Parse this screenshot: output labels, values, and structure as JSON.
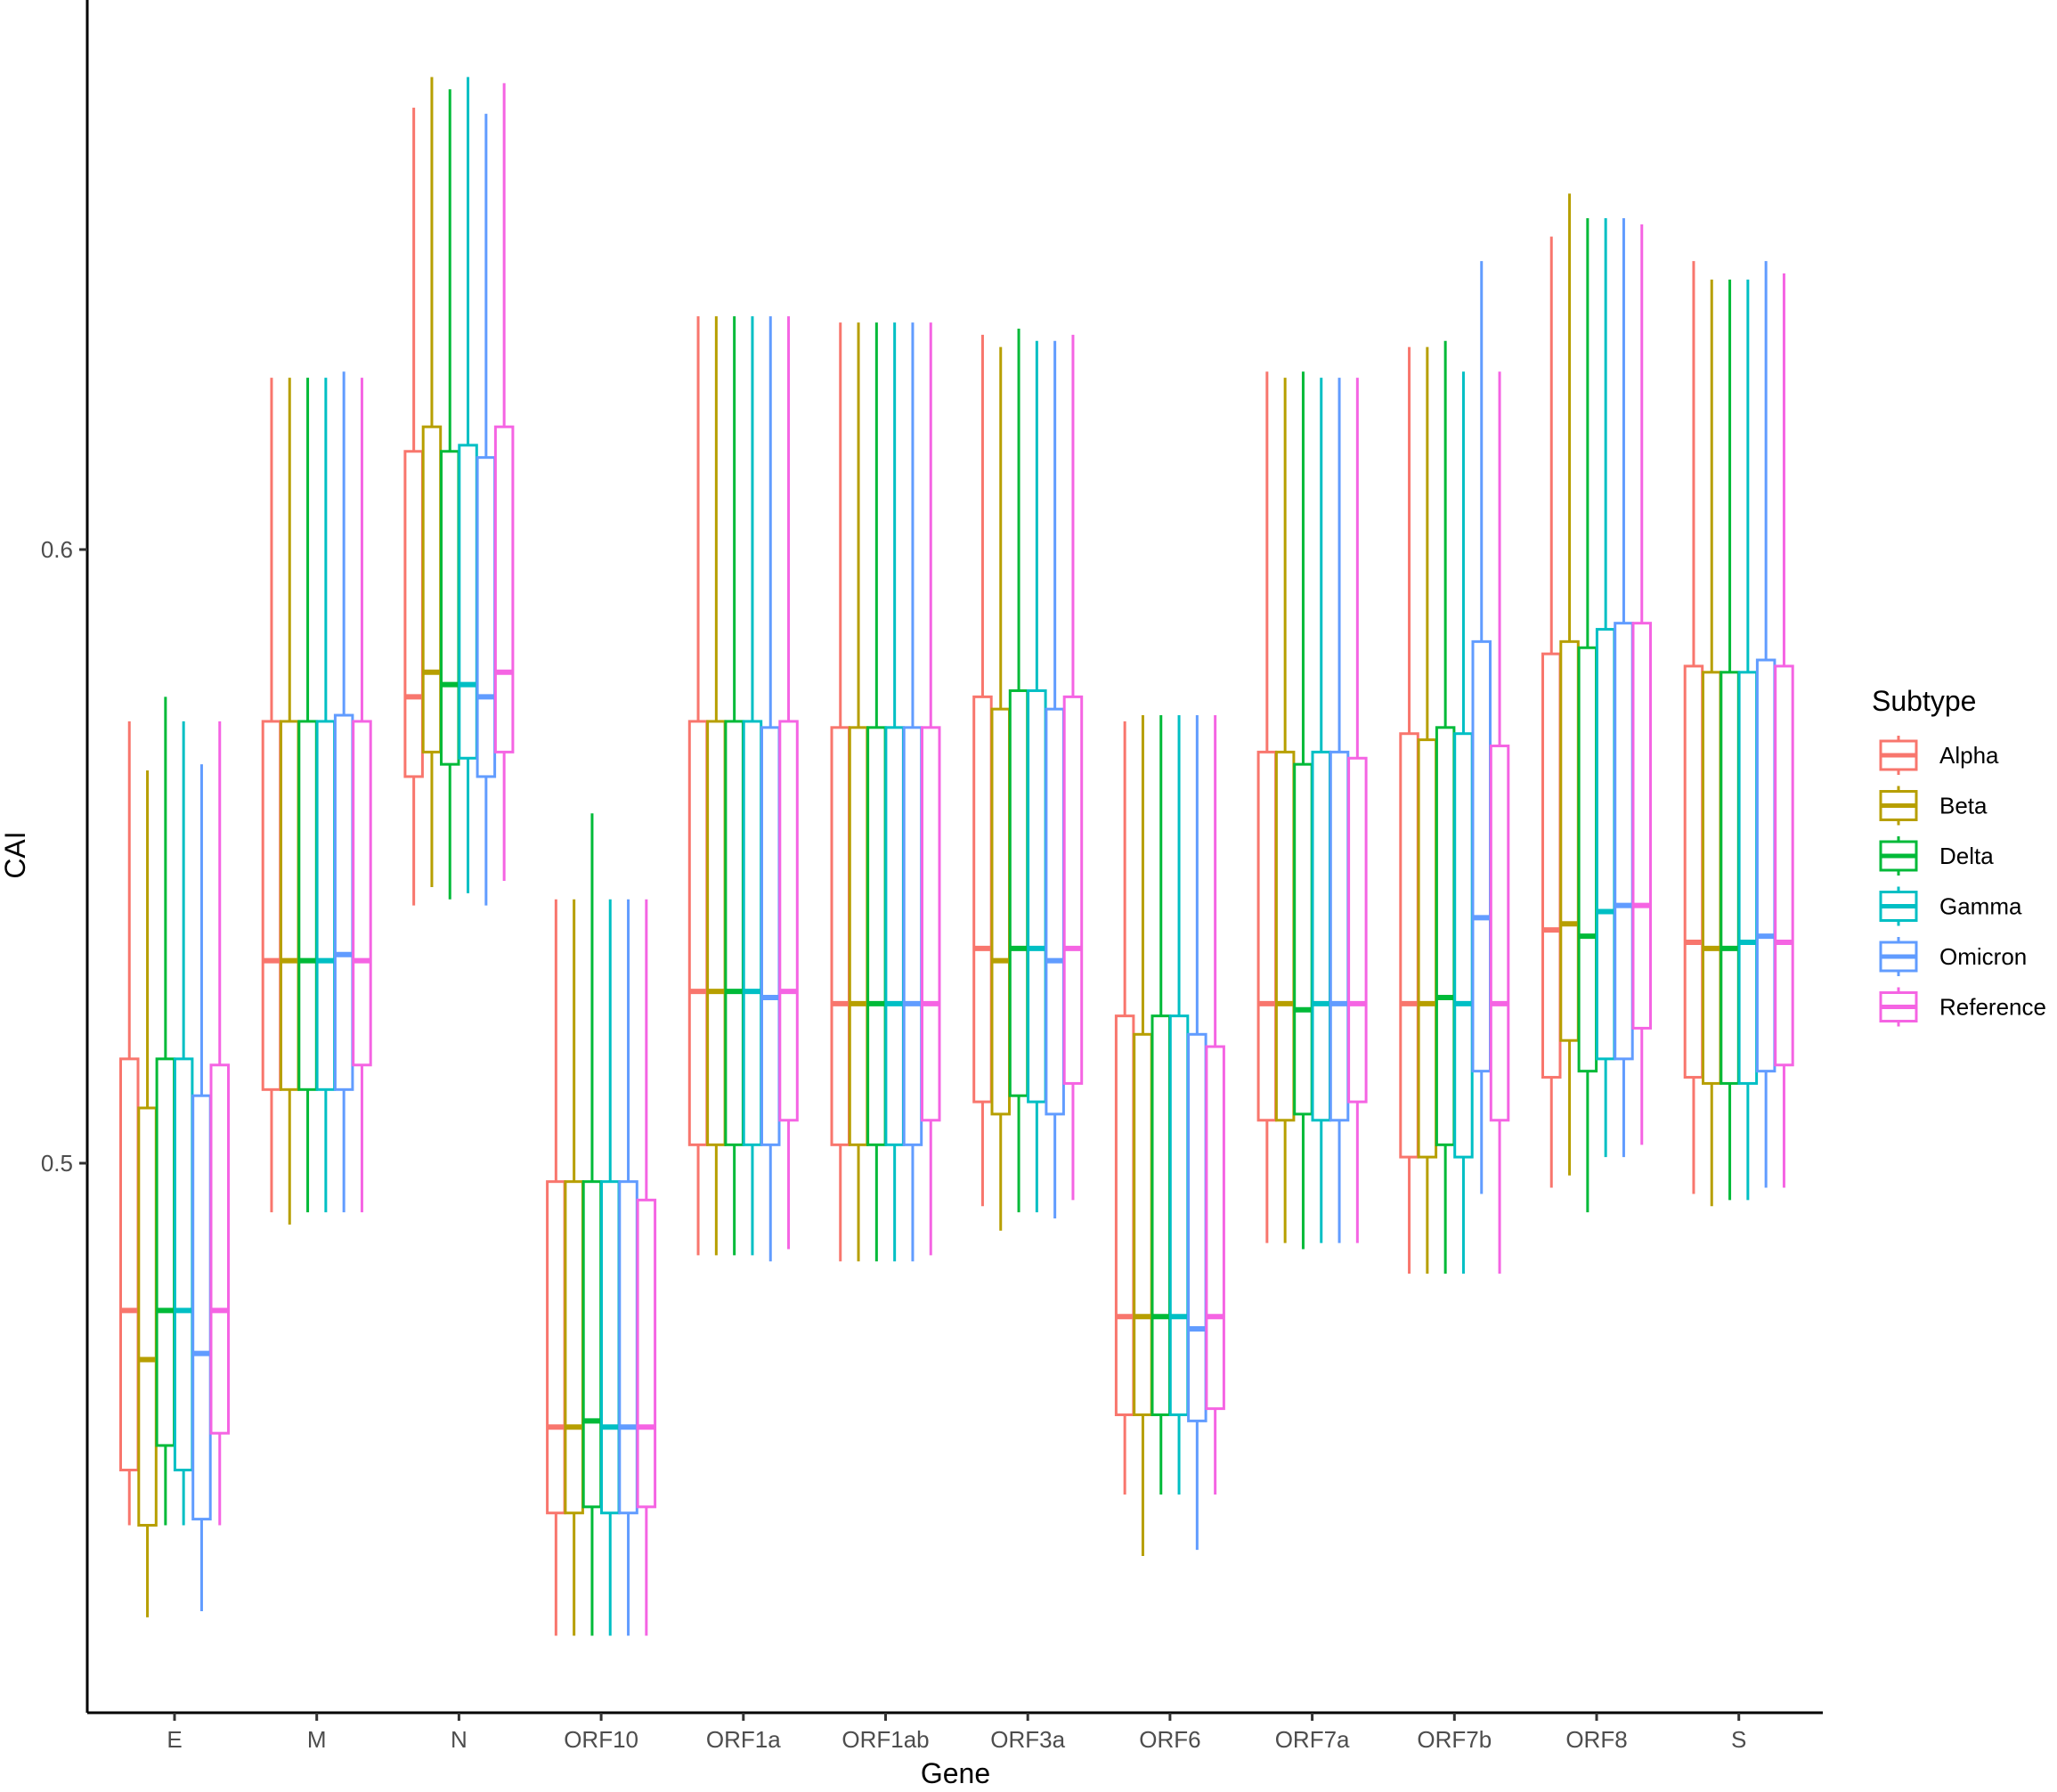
{
  "chart_data": {
    "type": "boxplot",
    "xlabel": "Gene",
    "ylabel": "CAI",
    "ylim": [
      0.41,
      0.69
    ],
    "yticks": [
      0.5,
      0.6
    ],
    "ytick_labels": [
      "0.5",
      "0.6"
    ],
    "categories": [
      "E",
      "M",
      "N",
      "ORF10",
      "ORF1a",
      "ORF1ab",
      "ORF3a",
      "ORF6",
      "ORF7a",
      "ORF7b",
      "ORF8",
      "S"
    ],
    "legend": {
      "title": "Subtype",
      "position": "right"
    },
    "grid": false,
    "series": [
      {
        "name": "Alpha",
        "color": "#F8766D",
        "boxes": [
          {
            "min": 0.441,
            "q1": 0.45,
            "median": 0.476,
            "q3": 0.517,
            "max": 0.572
          },
          {
            "min": 0.492,
            "q1": 0.512,
            "median": 0.533,
            "q3": 0.572,
            "max": 0.628
          },
          {
            "min": 0.542,
            "q1": 0.563,
            "median": 0.576,
            "q3": 0.616,
            "max": 0.672
          },
          {
            "min": 0.423,
            "q1": 0.443,
            "median": 0.457,
            "q3": 0.497,
            "max": 0.543
          },
          {
            "min": 0.485,
            "q1": 0.503,
            "median": 0.528,
            "q3": 0.572,
            "max": 0.638
          },
          {
            "min": 0.484,
            "q1": 0.503,
            "median": 0.526,
            "q3": 0.571,
            "max": 0.637
          },
          {
            "min": 0.493,
            "q1": 0.51,
            "median": 0.535,
            "q3": 0.576,
            "max": 0.635
          },
          {
            "min": 0.446,
            "q1": 0.459,
            "median": 0.475,
            "q3": 0.524,
            "max": 0.572
          },
          {
            "min": 0.487,
            "q1": 0.507,
            "median": 0.526,
            "q3": 0.567,
            "max": 0.629
          },
          {
            "min": 0.482,
            "q1": 0.501,
            "median": 0.526,
            "q3": 0.57,
            "max": 0.633
          },
          {
            "min": 0.496,
            "q1": 0.514,
            "median": 0.538,
            "q3": 0.583,
            "max": 0.651
          },
          {
            "min": 0.495,
            "q1": 0.514,
            "median": 0.536,
            "q3": 0.581,
            "max": 0.647
          }
        ]
      },
      {
        "name": "Beta",
        "color": "#B79F00",
        "boxes": [
          {
            "min": 0.426,
            "q1": 0.441,
            "median": 0.468,
            "q3": 0.509,
            "max": 0.564
          },
          {
            "min": 0.49,
            "q1": 0.512,
            "median": 0.533,
            "q3": 0.572,
            "max": 0.628
          },
          {
            "min": 0.545,
            "q1": 0.567,
            "median": 0.58,
            "q3": 0.62,
            "max": 0.677
          },
          {
            "min": 0.423,
            "q1": 0.443,
            "median": 0.457,
            "q3": 0.497,
            "max": 0.543
          },
          {
            "min": 0.485,
            "q1": 0.503,
            "median": 0.528,
            "q3": 0.572,
            "max": 0.638
          },
          {
            "min": 0.484,
            "q1": 0.503,
            "median": 0.526,
            "q3": 0.571,
            "max": 0.637
          },
          {
            "min": 0.489,
            "q1": 0.508,
            "median": 0.533,
            "q3": 0.574,
            "max": 0.633
          },
          {
            "min": 0.436,
            "q1": 0.459,
            "median": 0.475,
            "q3": 0.521,
            "max": 0.573
          },
          {
            "min": 0.487,
            "q1": 0.507,
            "median": 0.526,
            "q3": 0.567,
            "max": 0.628
          },
          {
            "min": 0.482,
            "q1": 0.501,
            "median": 0.526,
            "q3": 0.569,
            "max": 0.633
          },
          {
            "min": 0.498,
            "q1": 0.52,
            "median": 0.539,
            "q3": 0.585,
            "max": 0.658
          },
          {
            "min": 0.493,
            "q1": 0.513,
            "median": 0.535,
            "q3": 0.58,
            "max": 0.644
          }
        ]
      },
      {
        "name": "Delta",
        "color": "#00BA38",
        "boxes": [
          {
            "min": 0.441,
            "q1": 0.454,
            "median": 0.476,
            "q3": 0.517,
            "max": 0.576
          },
          {
            "min": 0.492,
            "q1": 0.512,
            "median": 0.533,
            "q3": 0.572,
            "max": 0.628
          },
          {
            "min": 0.543,
            "q1": 0.565,
            "median": 0.578,
            "q3": 0.616,
            "max": 0.675
          },
          {
            "min": 0.423,
            "q1": 0.444,
            "median": 0.458,
            "q3": 0.497,
            "max": 0.557
          },
          {
            "min": 0.485,
            "q1": 0.503,
            "median": 0.528,
            "q3": 0.572,
            "max": 0.638
          },
          {
            "min": 0.484,
            "q1": 0.503,
            "median": 0.526,
            "q3": 0.571,
            "max": 0.637
          },
          {
            "min": 0.492,
            "q1": 0.511,
            "median": 0.535,
            "q3": 0.577,
            "max": 0.636
          },
          {
            "min": 0.446,
            "q1": 0.459,
            "median": 0.475,
            "q3": 0.524,
            "max": 0.573
          },
          {
            "min": 0.486,
            "q1": 0.508,
            "median": 0.525,
            "q3": 0.565,
            "max": 0.629
          },
          {
            "min": 0.482,
            "q1": 0.503,
            "median": 0.527,
            "q3": 0.571,
            "max": 0.634
          },
          {
            "min": 0.492,
            "q1": 0.515,
            "median": 0.537,
            "q3": 0.584,
            "max": 0.654
          },
          {
            "min": 0.494,
            "q1": 0.513,
            "median": 0.535,
            "q3": 0.58,
            "max": 0.644
          }
        ]
      },
      {
        "name": "Gamma",
        "color": "#00BFC4",
        "boxes": [
          {
            "min": 0.441,
            "q1": 0.45,
            "median": 0.476,
            "q3": 0.517,
            "max": 0.572
          },
          {
            "min": 0.492,
            "q1": 0.512,
            "median": 0.533,
            "q3": 0.572,
            "max": 0.628
          },
          {
            "min": 0.544,
            "q1": 0.566,
            "median": 0.578,
            "q3": 0.617,
            "max": 0.677
          },
          {
            "min": 0.423,
            "q1": 0.443,
            "median": 0.457,
            "q3": 0.497,
            "max": 0.543
          },
          {
            "min": 0.485,
            "q1": 0.503,
            "median": 0.528,
            "q3": 0.572,
            "max": 0.638
          },
          {
            "min": 0.484,
            "q1": 0.503,
            "median": 0.526,
            "q3": 0.571,
            "max": 0.637
          },
          {
            "min": 0.492,
            "q1": 0.51,
            "median": 0.535,
            "q3": 0.577,
            "max": 0.634
          },
          {
            "min": 0.446,
            "q1": 0.459,
            "median": 0.475,
            "q3": 0.524,
            "max": 0.573
          },
          {
            "min": 0.487,
            "q1": 0.507,
            "median": 0.526,
            "q3": 0.567,
            "max": 0.628
          },
          {
            "min": 0.482,
            "q1": 0.501,
            "median": 0.526,
            "q3": 0.57,
            "max": 0.629
          },
          {
            "min": 0.501,
            "q1": 0.517,
            "median": 0.541,
            "q3": 0.587,
            "max": 0.654
          },
          {
            "min": 0.494,
            "q1": 0.513,
            "median": 0.536,
            "q3": 0.58,
            "max": 0.644
          }
        ]
      },
      {
        "name": "Omicron",
        "color": "#619CFF",
        "boxes": [
          {
            "min": 0.427,
            "q1": 0.442,
            "median": 0.469,
            "q3": 0.511,
            "max": 0.565
          },
          {
            "min": 0.492,
            "q1": 0.512,
            "median": 0.534,
            "q3": 0.573,
            "max": 0.629
          },
          {
            "min": 0.542,
            "q1": 0.563,
            "median": 0.576,
            "q3": 0.615,
            "max": 0.671
          },
          {
            "min": 0.423,
            "q1": 0.443,
            "median": 0.457,
            "q3": 0.497,
            "max": 0.543
          },
          {
            "min": 0.484,
            "q1": 0.503,
            "median": 0.527,
            "q3": 0.571,
            "max": 0.638
          },
          {
            "min": 0.484,
            "q1": 0.503,
            "median": 0.526,
            "q3": 0.571,
            "max": 0.637
          },
          {
            "min": 0.491,
            "q1": 0.508,
            "median": 0.533,
            "q3": 0.574,
            "max": 0.634
          },
          {
            "min": 0.437,
            "q1": 0.458,
            "median": 0.473,
            "q3": 0.521,
            "max": 0.573
          },
          {
            "min": 0.487,
            "q1": 0.507,
            "median": 0.526,
            "q3": 0.567,
            "max": 0.628
          },
          {
            "min": 0.495,
            "q1": 0.515,
            "median": 0.54,
            "q3": 0.585,
            "max": 0.647
          },
          {
            "min": 0.501,
            "q1": 0.517,
            "median": 0.542,
            "q3": 0.588,
            "max": 0.654
          },
          {
            "min": 0.496,
            "q1": 0.515,
            "median": 0.537,
            "q3": 0.582,
            "max": 0.647
          }
        ]
      },
      {
        "name": "Reference",
        "color": "#F564E3",
        "boxes": [
          {
            "min": 0.441,
            "q1": 0.456,
            "median": 0.476,
            "q3": 0.516,
            "max": 0.572
          },
          {
            "min": 0.492,
            "q1": 0.516,
            "median": 0.533,
            "q3": 0.572,
            "max": 0.628
          },
          {
            "min": 0.546,
            "q1": 0.567,
            "median": 0.58,
            "q3": 0.62,
            "max": 0.676
          },
          {
            "min": 0.423,
            "q1": 0.444,
            "median": 0.457,
            "q3": 0.494,
            "max": 0.543
          },
          {
            "min": 0.486,
            "q1": 0.507,
            "median": 0.528,
            "q3": 0.572,
            "max": 0.638
          },
          {
            "min": 0.485,
            "q1": 0.507,
            "median": 0.526,
            "q3": 0.571,
            "max": 0.637
          },
          {
            "min": 0.494,
            "q1": 0.513,
            "median": 0.535,
            "q3": 0.576,
            "max": 0.635
          },
          {
            "min": 0.446,
            "q1": 0.46,
            "median": 0.475,
            "q3": 0.519,
            "max": 0.573
          },
          {
            "min": 0.487,
            "q1": 0.51,
            "median": 0.526,
            "q3": 0.566,
            "max": 0.628
          },
          {
            "min": 0.482,
            "q1": 0.507,
            "median": 0.526,
            "q3": 0.568,
            "max": 0.629
          },
          {
            "min": 0.503,
            "q1": 0.522,
            "median": 0.542,
            "q3": 0.588,
            "max": 0.653
          },
          {
            "min": 0.496,
            "q1": 0.516,
            "median": 0.536,
            "q3": 0.581,
            "max": 0.645
          }
        ]
      }
    ]
  }
}
